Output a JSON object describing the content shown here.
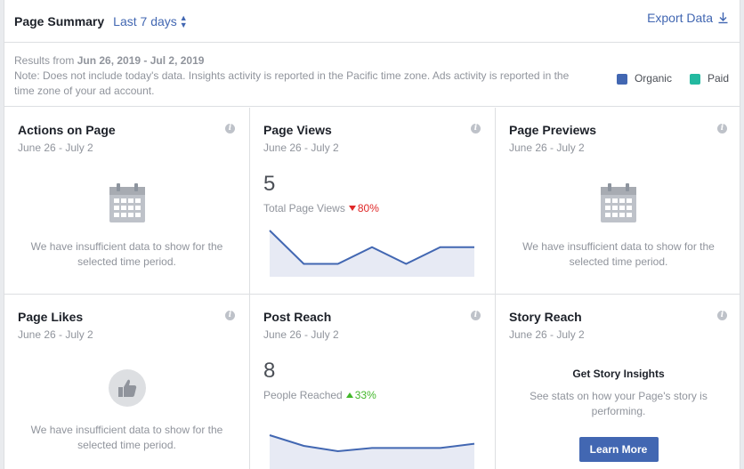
{
  "header": {
    "title": "Page Summary",
    "range_label": "Last 7 days",
    "export_label": "Export Data"
  },
  "notes": {
    "results_prefix": "Results from",
    "results_range": "Jun 26, 2019 - Jul 2, 2019",
    "note": "Note: Does not include today's data. Insights activity is reported in the Pacific time zone. Ads activity is reported in the time zone of your ad account."
  },
  "legend": [
    {
      "label": "Organic",
      "color": "#4267b2"
    },
    {
      "label": "Paid",
      "color": "#23b9a0"
    }
  ],
  "cards": {
    "actions": {
      "title": "Actions on Page",
      "date": "June 26 - July 2",
      "empty": "We have insufficient data to show for the selected time period.",
      "icon": "calendar-icon"
    },
    "views": {
      "title": "Page Views",
      "date": "June 26 - July 2",
      "value": "5",
      "label": "Total Page Views",
      "delta": "80%",
      "direction": "down",
      "color": "#4267b2",
      "series": [
        4,
        1,
        1,
        2.5,
        1,
        2.5,
        2.5
      ]
    },
    "previews": {
      "title": "Page Previews",
      "date": "June 26 - July 2",
      "empty": "We have insufficient data to show for the selected time period.",
      "icon": "calendar-icon"
    },
    "likes": {
      "title": "Page Likes",
      "date": "June 26 - July 2",
      "empty": "We have insufficient data to show for the selected time period.",
      "icon": "thumbs-up-icon"
    },
    "reach": {
      "title": "Post Reach",
      "date": "June 26 - July 2",
      "value": "8",
      "label": "People Reached",
      "delta": "33%",
      "direction": "up",
      "color": "#4267b2",
      "series": [
        3,
        2,
        1.5,
        1.8,
        1.8,
        1.8,
        2.2
      ]
    },
    "story": {
      "title": "Story Reach",
      "date": "June 26 - July 2",
      "cta_title": "Get Story Insights",
      "cta_text": "See stats on how your Page's story is performing.",
      "button": "Learn More"
    }
  }
}
